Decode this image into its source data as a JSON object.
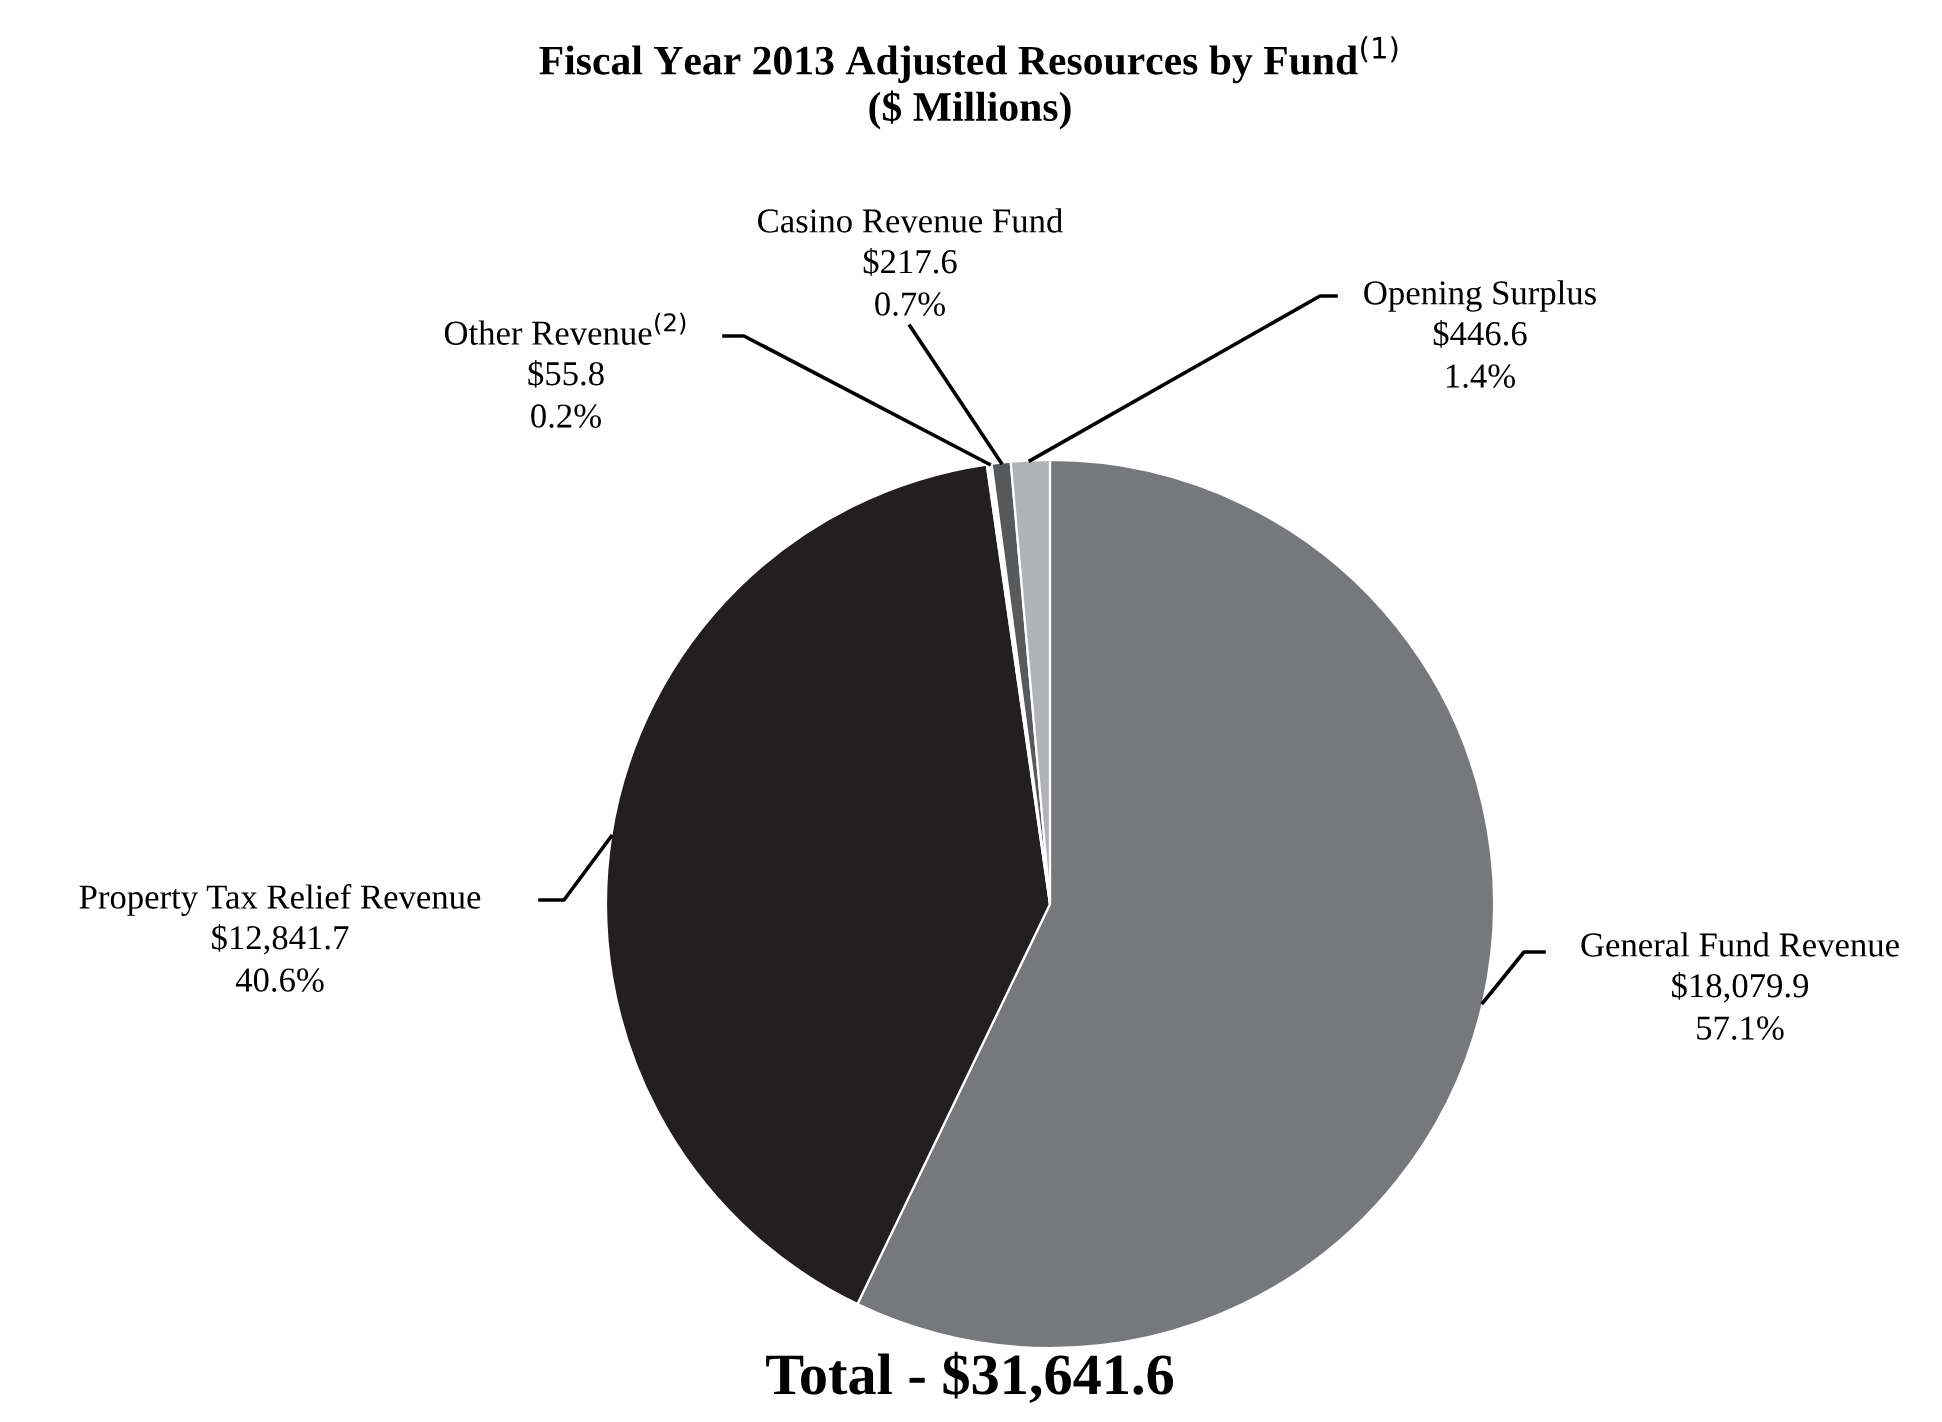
{
  "chart_data": {
    "type": "pie",
    "title": "Fiscal Year 2013 Adjusted Resources by Fund$^{(1)}$",
    "subtitle": "($ Millions)",
    "categories": [
      "General Fund Revenue",
      "Property Tax Relief Revenue",
      "Other Revenue$^{(2)}$",
      "Casino Revenue Fund",
      "Opening Surplus"
    ],
    "values": [
      18079.9,
      12841.7,
      55.8,
      217.6,
      446.6
    ],
    "colors": [
      "#77787b",
      "#231f20",
      "#ffffff",
      "#58595b",
      "#b1b3b6"
    ],
    "value_labels": [
      "$18,079.9\n57.1%",
      "$12,841.7\n40.6%",
      "$55.8\n0.2%",
      "$217.6\n0.7%",
      "$446.6\n1.4%"
    ],
    "annotations": [
      "Total - $31,641.6"
    ]
  }
}
